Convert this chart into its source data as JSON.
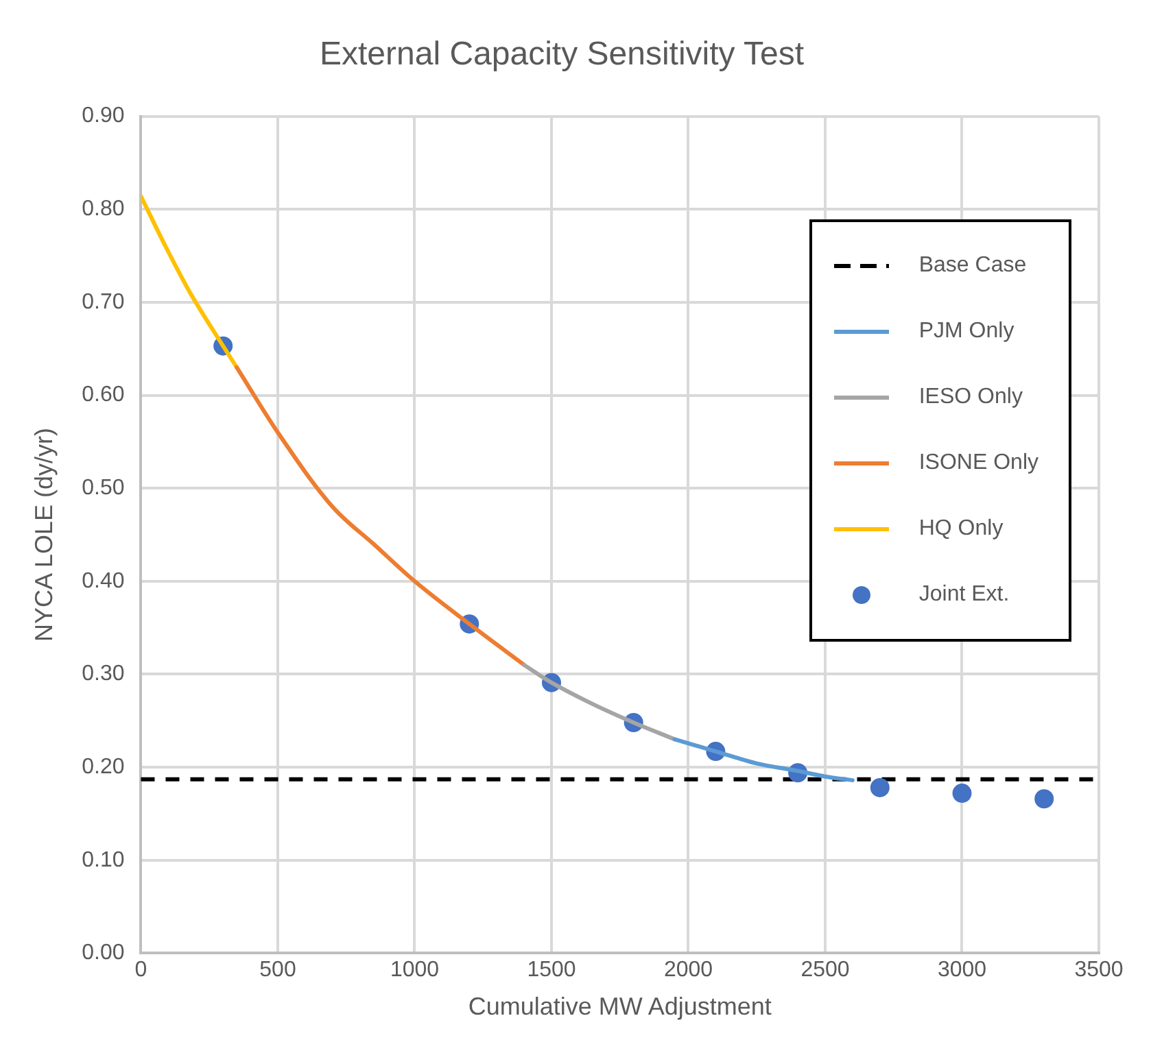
{
  "chart_data": {
    "type": "line",
    "title": "External Capacity Sensitivity Test",
    "xlabel": "Cumulative MW Adjustment",
    "ylabel": "NYCA LOLE (dy/yr)",
    "xlim": [
      0,
      3500
    ],
    "xticks": [
      0,
      500,
      1000,
      1500,
      2000,
      2500,
      3000,
      3500
    ],
    "ylim": [
      0,
      0.9
    ],
    "yticks": [
      {
        "value": 0,
        "label": "0.00"
      },
      {
        "value": 0.1,
        "label": "0.10"
      },
      {
        "value": 0.2,
        "label": "0.20"
      },
      {
        "value": 0.3,
        "label": "0.30"
      },
      {
        "value": 0.4,
        "label": "0.40"
      },
      {
        "value": 0.5,
        "label": "0.50"
      },
      {
        "value": 0.6,
        "label": "0.60"
      },
      {
        "value": 0.7,
        "label": "0.70"
      },
      {
        "value": 0.8,
        "label": "0.80"
      },
      {
        "value": 0.9,
        "label": "0.90"
      }
    ],
    "grid": true,
    "legend": "top right",
    "line_style": "solid",
    "ref_lines": [
      {
        "axis": "y",
        "value": 0.187,
        "label": "Base Case",
        "color": "#000000",
        "line_style": "dashed"
      }
    ],
    "series": [
      {
        "name": "PJM Only",
        "color": "#5b9bd5",
        "marker": "none",
        "x": [
          1950,
          2100,
          2250,
          2400,
          2500,
          2600
        ],
        "values": [
          0.23,
          0.217,
          0.204,
          0.196,
          0.19,
          0.186
        ]
      },
      {
        "name": "IESO Only",
        "color": "#a5a5a5",
        "marker": "none",
        "x": [
          1400,
          1500,
          1650,
          1800,
          1950
        ],
        "values": [
          0.31,
          0.291,
          0.268,
          0.248,
          0.23
        ]
      },
      {
        "name": "ISONE Only",
        "color": "#ed7d31",
        "marker": "none",
        "x": [
          350,
          500,
          700,
          850,
          1000,
          1200,
          1400
        ],
        "values": [
          0.63,
          0.56,
          0.48,
          0.44,
          0.4,
          0.354,
          0.31
        ]
      },
      {
        "name": "HQ Only",
        "color": "#ffc000",
        "marker": "none",
        "x": [
          0,
          90,
          180,
          300,
          350
        ],
        "values": [
          0.814,
          0.76,
          0.71,
          0.653,
          0.63
        ]
      },
      {
        "name": "Joint Ext.",
        "type": "scatter",
        "color": "#4472c4",
        "marker": "circle",
        "x": [
          300,
          1200,
          1500,
          1800,
          2100,
          2400,
          2700,
          3000,
          3300
        ],
        "values": [
          0.653,
          0.354,
          0.291,
          0.248,
          0.217,
          0.194,
          0.178,
          0.172,
          0.166
        ]
      }
    ]
  }
}
